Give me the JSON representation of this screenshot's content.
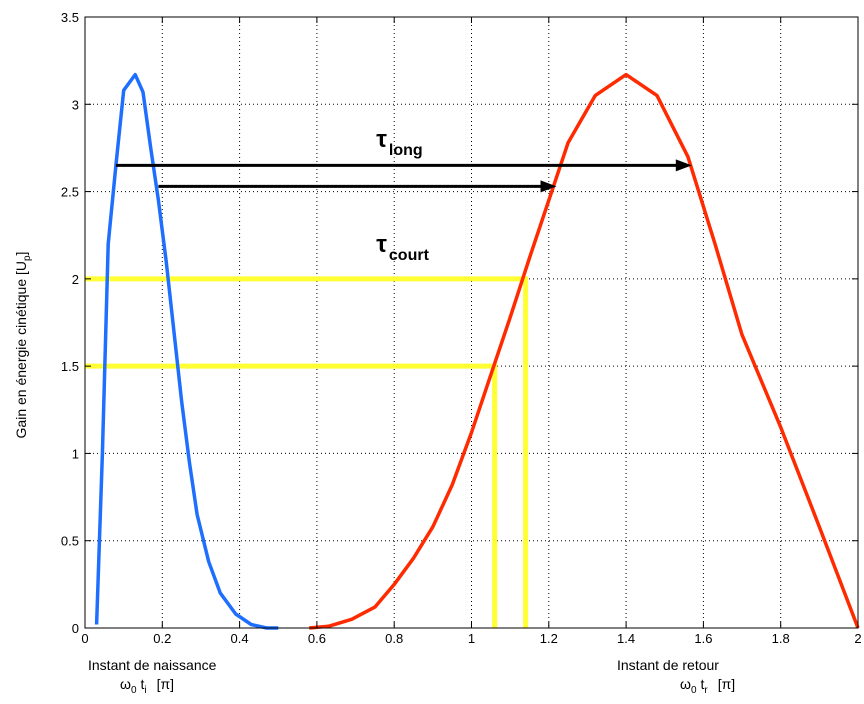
{
  "chart_data": {
    "type": "line",
    "xlim": [
      0,
      2
    ],
    "ylim": [
      0,
      3.5
    ],
    "x_ticks": [
      "0",
      "0.2",
      "0.4",
      "0.6",
      "0.8",
      "1",
      "1.2",
      "1.4",
      "1.6",
      "1.8",
      "2"
    ],
    "y_ticks": [
      "0",
      "0.5",
      "1",
      "1.5",
      "2",
      "2.5",
      "3",
      "3.5"
    ],
    "grid": true,
    "ylabel_main": "Gain en énergie cinétique [U",
    "ylabel_sub": "p",
    "ylabel_end": "]",
    "xlabel_left": {
      "line1": "Instant de naissance",
      "omega": "ω",
      "omega_sub": "0",
      "t": "t",
      "t_sub": "i",
      "unit": "[π]"
    },
    "xlabel_right": {
      "line1": "Instant de retour",
      "omega": "ω",
      "omega_sub": "0",
      "t": "t",
      "t_sub": "r",
      "unit": "[π]"
    },
    "series": [
      {
        "color": "#1f6fff",
        "points": [
          [
            0.03,
            0.02
          ],
          [
            0.045,
            1.0
          ],
          [
            0.06,
            2.2
          ],
          [
            0.08,
            2.65
          ],
          [
            0.1,
            3.08
          ],
          [
            0.13,
            3.17
          ],
          [
            0.15,
            3.07
          ],
          [
            0.17,
            2.75
          ],
          [
            0.19,
            2.45
          ],
          [
            0.21,
            2.1
          ],
          [
            0.23,
            1.7
          ],
          [
            0.25,
            1.3
          ],
          [
            0.27,
            0.95
          ],
          [
            0.29,
            0.65
          ],
          [
            0.32,
            0.38
          ],
          [
            0.35,
            0.2
          ],
          [
            0.39,
            0.08
          ],
          [
            0.43,
            0.02
          ],
          [
            0.47,
            0.0
          ],
          [
            0.5,
            0.0
          ]
        ]
      },
      {
        "color": "#ff2a00",
        "points": [
          [
            0.58,
            0.0
          ],
          [
            0.63,
            0.01
          ],
          [
            0.69,
            0.05
          ],
          [
            0.75,
            0.12
          ],
          [
            0.8,
            0.25
          ],
          [
            0.85,
            0.4
          ],
          [
            0.9,
            0.58
          ],
          [
            0.95,
            0.82
          ],
          [
            1.0,
            1.12
          ],
          [
            1.05,
            1.45
          ],
          [
            1.1,
            1.78
          ],
          [
            1.15,
            2.12
          ],
          [
            1.2,
            2.45
          ],
          [
            1.25,
            2.78
          ],
          [
            1.32,
            3.05
          ],
          [
            1.4,
            3.17
          ],
          [
            1.48,
            3.05
          ],
          [
            1.56,
            2.7
          ],
          [
            1.63,
            2.2
          ],
          [
            1.7,
            1.68
          ],
          [
            1.8,
            1.15
          ],
          [
            1.9,
            0.58
          ],
          [
            2.0,
            0.0
          ]
        ]
      }
    ],
    "guides": {
      "color": "#ffff33",
      "levels": [
        {
          "y": 2.0,
          "x_end": 1.14
        },
        {
          "y": 1.5,
          "x_end": 1.06
        }
      ]
    },
    "arrows": [
      {
        "label": "τ",
        "sub": "long",
        "x_start": 0.08,
        "x_end": 1.57,
        "y": 2.65,
        "label_x": 0.8,
        "label_y": 2.8
      },
      {
        "label": "τ",
        "sub": "court",
        "x_start": 0.19,
        "x_end": 1.22,
        "y": 2.53,
        "label_x": 0.8,
        "label_y": 2.2
      }
    ]
  }
}
